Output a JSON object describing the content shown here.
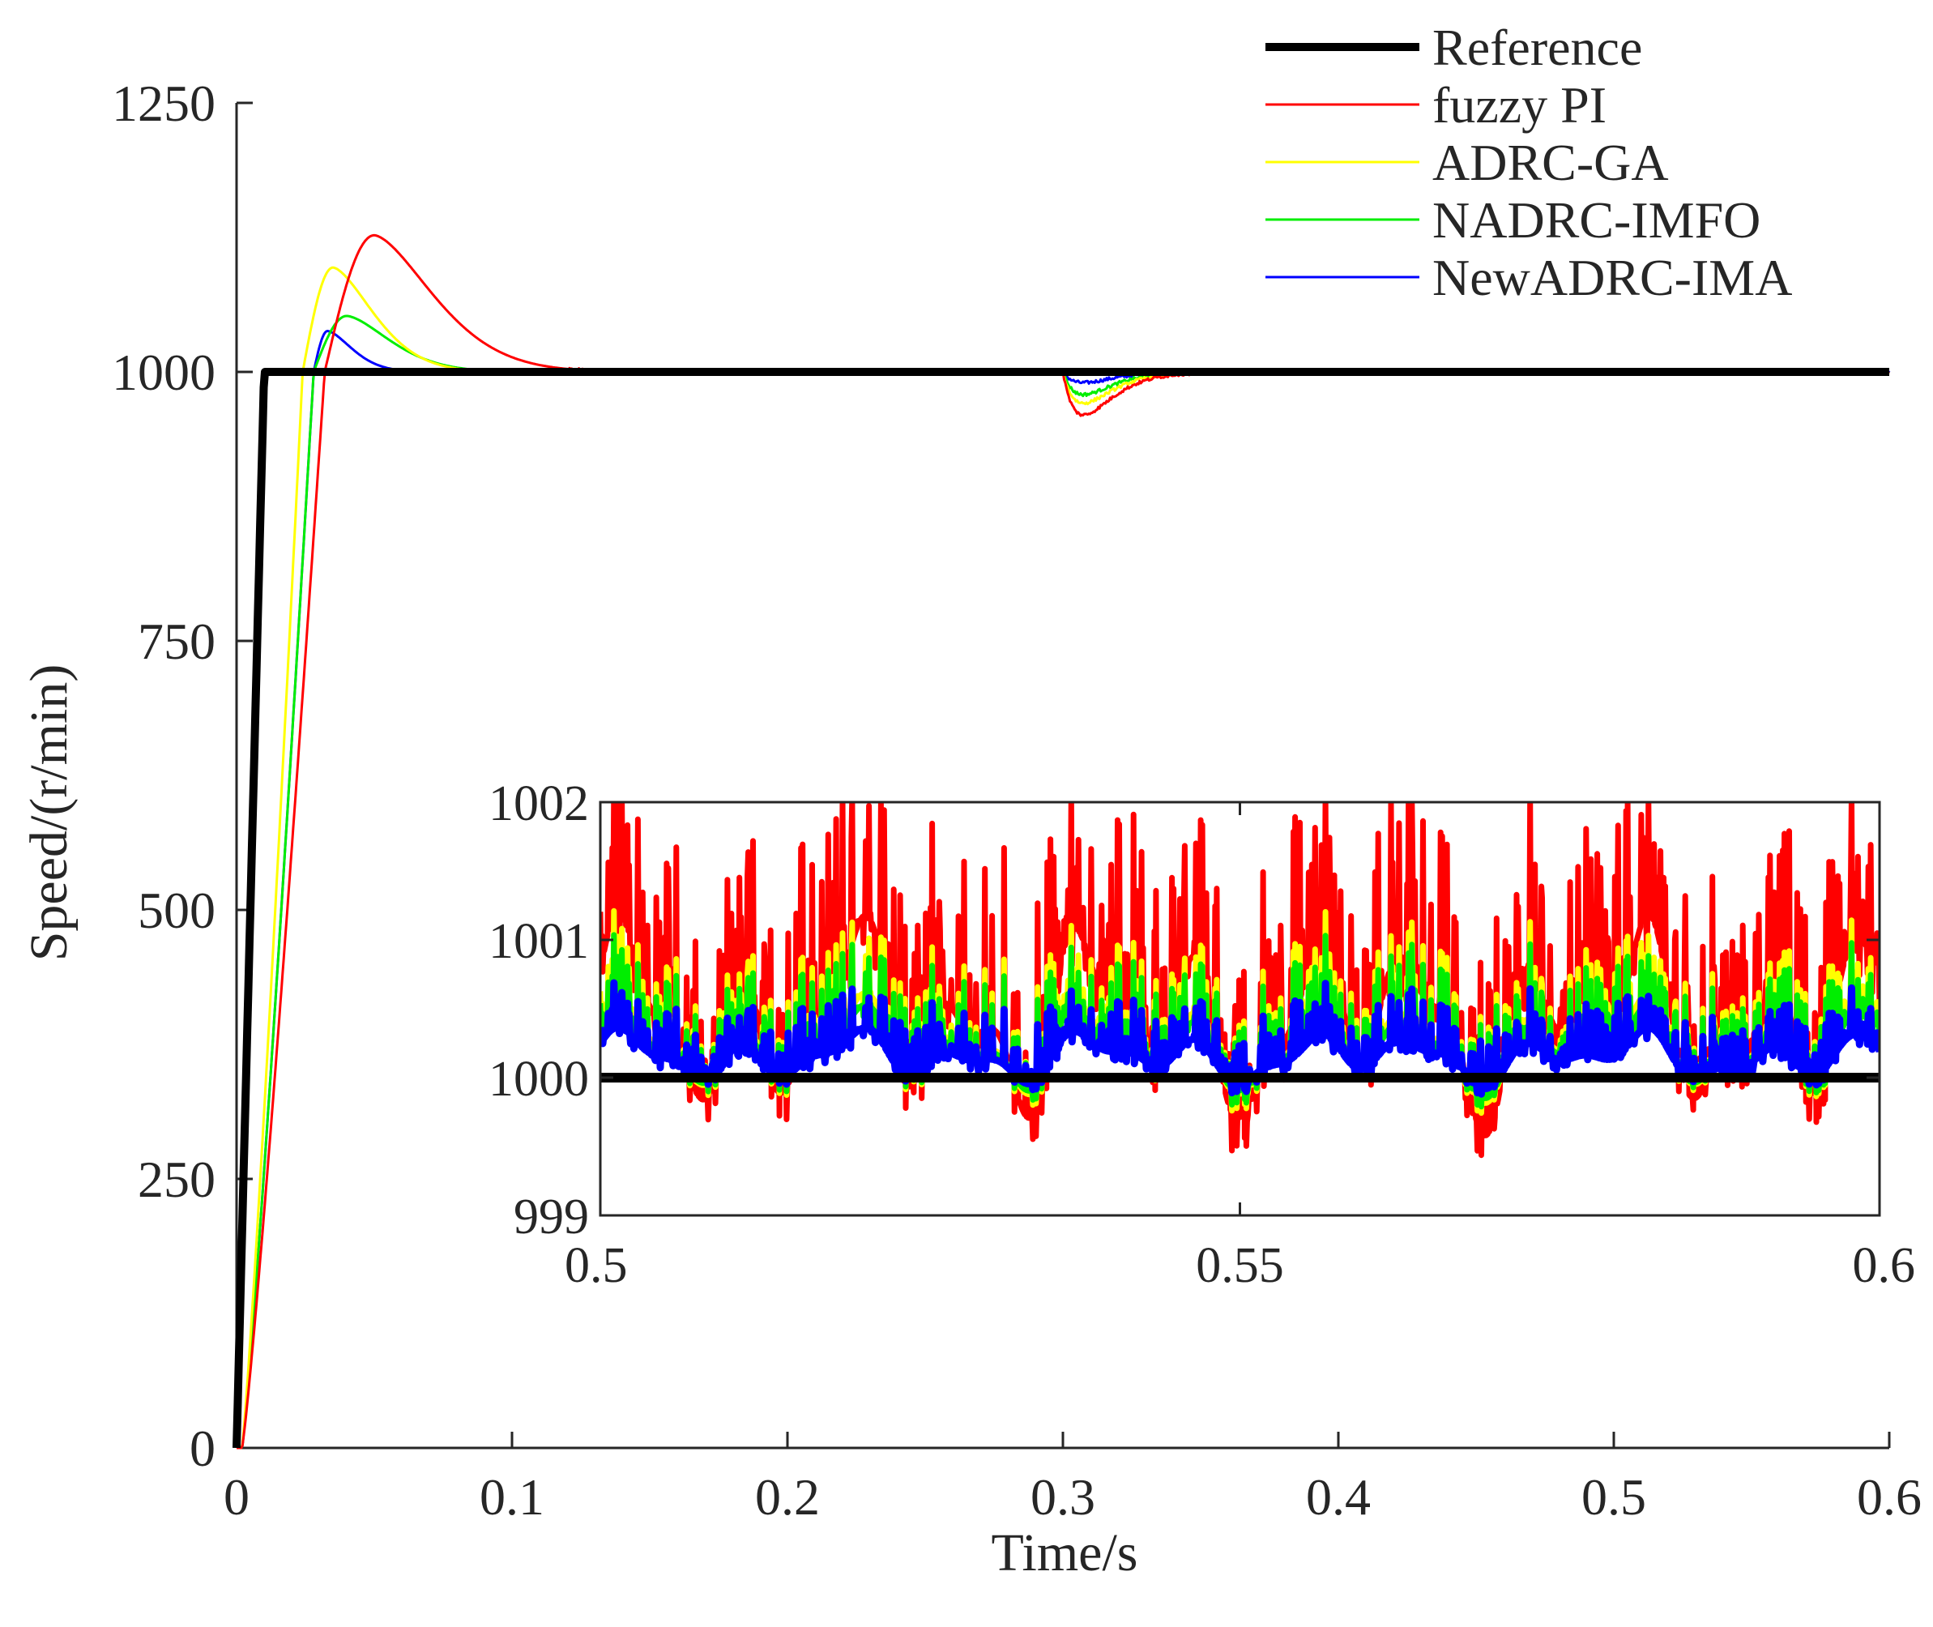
{
  "chart_data": {
    "type": "line",
    "main": {
      "xlabel": "Time/s",
      "ylabel": "Speed/(r/min)",
      "xlim": [
        0,
        0.6
      ],
      "ylim": [
        0,
        1250
      ],
      "xticks": [
        0,
        0.1,
        0.2,
        0.3,
        0.4,
        0.5,
        0.6
      ],
      "xtick_labels": [
        "0",
        "0.1",
        "0.2",
        "0.3",
        "0.4",
        "0.5",
        "0.6"
      ],
      "yticks": [
        0,
        250,
        500,
        750,
        1000,
        1250
      ],
      "ytick_labels": [
        "0",
        "250",
        "500",
        "750",
        "1000",
        "1250"
      ],
      "grid": false,
      "disturbance_time": 0.3,
      "series": [
        {
          "name": "Reference",
          "color": "#000000",
          "ramp_end": 0.01,
          "final": 1000,
          "peak": 1000,
          "peak_time": 0.01,
          "dip_min": 1000
        },
        {
          "name": "fuzzy PI",
          "color": "#ff0000",
          "ramp_end": 0.032,
          "final": 1000,
          "peak": 1127,
          "peak_time": 0.05,
          "dip_min": 960
        },
        {
          "name": "ADRC-GA",
          "color": "#ffff00",
          "ramp_end": 0.024,
          "final": 1000,
          "peak": 1097,
          "peak_time": 0.035,
          "dip_min": 971
        },
        {
          "name": "NADRC-IMFO",
          "color": "#00ee00",
          "ramp_end": 0.028,
          "final": 1000,
          "peak": 1052,
          "peak_time": 0.04,
          "dip_min": 979
        },
        {
          "name": "NewADRC-IMA",
          "color": "#0000ff",
          "ramp_end": 0.028,
          "final": 1000,
          "peak": 1038,
          "peak_time": 0.033,
          "dip_min": 990
        }
      ]
    },
    "inset": {
      "xlim": [
        0.5,
        0.6
      ],
      "ylim": [
        999,
        1002
      ],
      "xticks": [
        0.5,
        0.55,
        0.6
      ],
      "xtick_labels": [
        "0.5",
        "0.55",
        "0.6"
      ],
      "yticks": [
        999,
        1000,
        1001,
        1002
      ],
      "ytick_labels": [
        "999",
        "1000",
        "1001",
        "1002"
      ],
      "noise_amplitude": {
        "fuzzy PI": 2.0,
        "ADRC-GA": 1.0,
        "NADRC-IMFO": 0.85,
        "NewADRC-IMA": 0.55
      }
    },
    "legend": {
      "placement": "top-right",
      "entries": [
        "Reference",
        "fuzzy PI",
        "ADRC-GA",
        "NADRC-IMFO",
        "NewADRC-IMA"
      ]
    }
  }
}
